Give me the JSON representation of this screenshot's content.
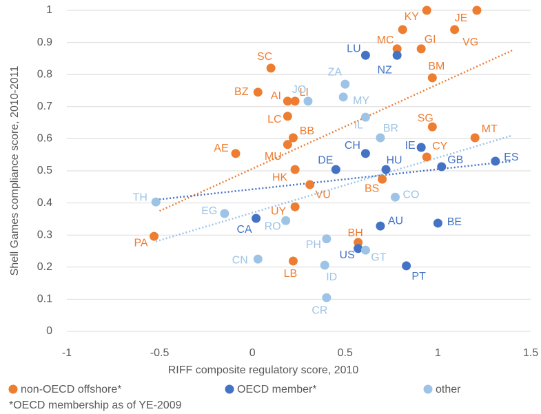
{
  "chart_data": {
    "type": "scatter",
    "xlabel": "RIFF composite regulatory score, 2010",
    "ylabel": "Shell Games compliance score, 2010-2011",
    "footnote": "*OECD membership as of YE-2009",
    "xlim": [
      -1,
      1.5
    ],
    "xticks": [
      -1,
      -0.5,
      0,
      0.5,
      1,
      1.5
    ],
    "ylim": [
      0,
      1
    ],
    "yticks": [
      0,
      0.1,
      0.2,
      0.3,
      0.4,
      0.5,
      0.6,
      0.7,
      0.8,
      0.9,
      1
    ],
    "grid": true,
    "legend": "bottom",
    "series": [
      {
        "name": "non-OECD offshore*",
        "color": "#ed7d31",
        "labels": [
          "KY",
          null,
          "JE",
          "MC",
          "GI",
          "VG",
          "SC",
          "BZ",
          "AI",
          "LI",
          "LC",
          "BB",
          "MU",
          "AE",
          "BM",
          "SG",
          "MT",
          "CY",
          "HK",
          "BS",
          "VU",
          "UY",
          "BH",
          "LB",
          "PA"
        ],
        "x": [
          0.81,
          0.94,
          1.21,
          0.78,
          0.91,
          1.09,
          0.1,
          0.03,
          0.19,
          0.23,
          0.19,
          0.22,
          0.19,
          -0.09,
          0.97,
          0.97,
          1.2,
          0.94,
          0.23,
          0.7,
          0.31,
          0.23,
          0.57,
          0.22,
          -0.53
        ],
        "values": [
          0.94,
          1,
          1,
          0.88,
          0.88,
          0.94,
          0.82,
          0.745,
          0.717,
          0.717,
          0.67,
          0.603,
          0.582,
          0.554,
          0.79,
          0.637,
          0.603,
          0.543,
          0.504,
          0.474,
          0.457,
          0.388,
          0.277,
          0.219,
          0.296
        ],
        "trend": {
          "x": [
            -0.5,
            1.4
          ],
          "values": [
            0.375,
            0.875
          ]
        }
      },
      {
        "name": "OECD member*",
        "color": "#4472c4",
        "labels": [
          "LU",
          "NZ",
          "CH",
          "DE",
          "HU",
          "IE",
          "GB",
          "ES",
          "CA",
          "AU",
          "BE",
          "US",
          "PT"
        ],
        "x": [
          0.61,
          0.78,
          0.61,
          0.45,
          0.72,
          0.91,
          1.02,
          1.31,
          0.02,
          0.69,
          1,
          0.57,
          0.83
        ],
        "values": [
          0.86,
          0.86,
          0.554,
          0.504,
          0.504,
          0.573,
          0.513,
          0.53,
          0.352,
          0.328,
          0.337,
          0.258,
          0.204
        ],
        "trend": {
          "x": [
            -0.52,
            1.4
          ],
          "values": [
            0.41,
            0.53
          ]
        }
      },
      {
        "name": "other",
        "color": "#9dc3e6",
        "labels": [
          "ZA",
          "JO",
          "MY",
          "IL",
          "BR",
          "TH",
          "CO",
          "EG",
          "RO",
          "PH",
          "CN",
          "GT",
          "ID",
          "CR"
        ],
        "x": [
          0.5,
          0.3,
          0.49,
          0.61,
          0.69,
          -0.52,
          0.77,
          -0.15,
          0.18,
          0.4,
          0.03,
          0.61,
          0.39,
          0.4
        ],
        "values": [
          0.77,
          0.717,
          0.73,
          0.667,
          0.603,
          0.403,
          0.418,
          0.367,
          0.345,
          0.288,
          0.225,
          0.253,
          0.206,
          0.105
        ],
        "trend": {
          "x": [
            -0.52,
            1.4
          ],
          "values": [
            0.28,
            0.61
          ]
        }
      }
    ]
  }
}
